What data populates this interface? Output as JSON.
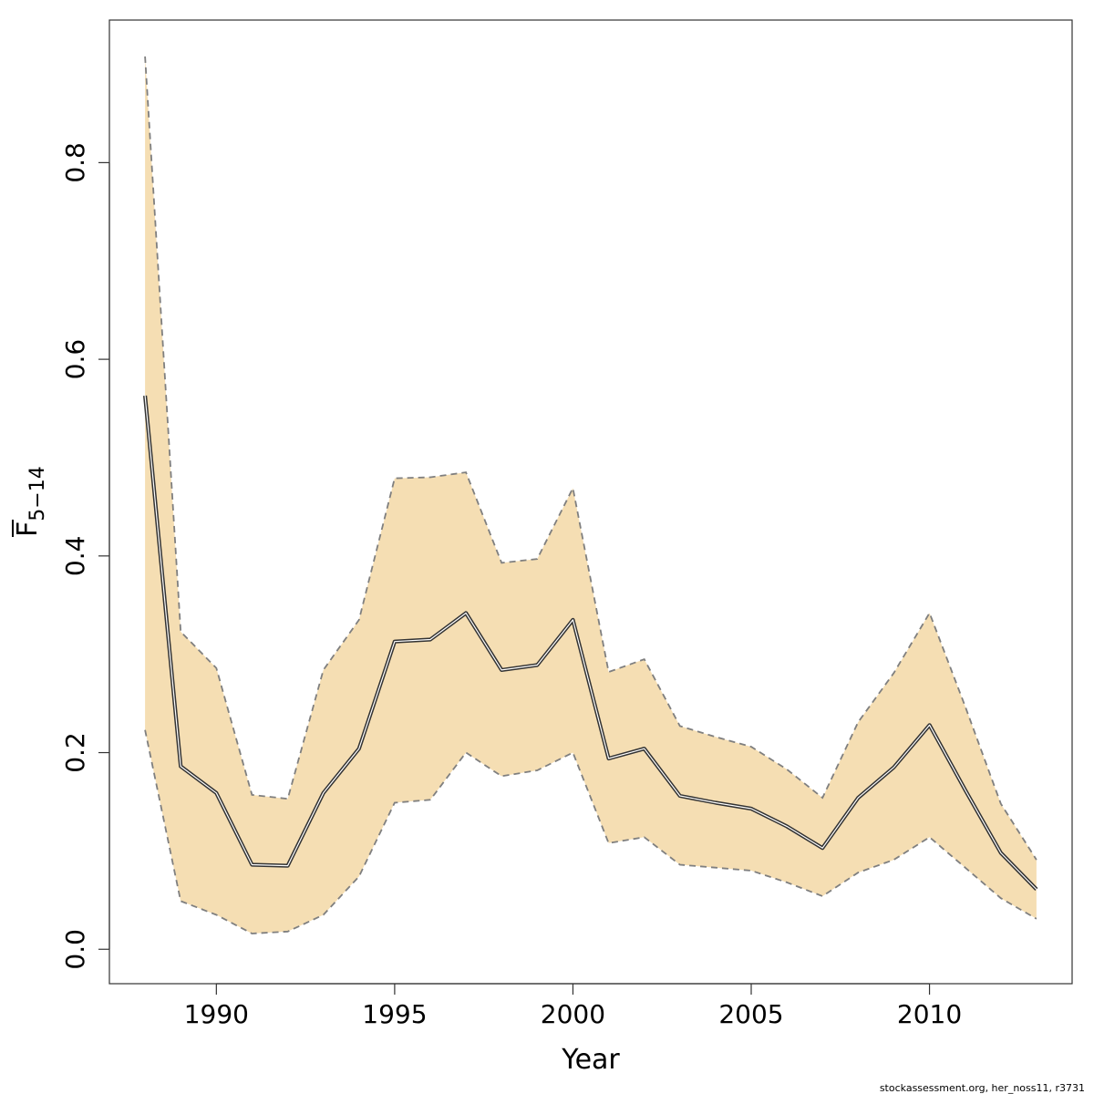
{
  "chart_data": {
    "type": "line",
    "xlabel": "Year",
    "ylabel": "F",
    "ylabel_subscript": "5−14",
    "xlim": [
      1987,
      2014
    ],
    "ylim": [
      -0.035,
      0.945
    ],
    "x_ticks": [
      1990,
      1995,
      2000,
      2005,
      2010
    ],
    "y_ticks": [
      0.0,
      0.2,
      0.4,
      0.6,
      0.8
    ],
    "y_tick_labels": [
      "0.0",
      "0.2",
      "0.4",
      "0.6",
      "0.8"
    ],
    "grid": false,
    "band_color": "#f5deb3",
    "band_line_color": "#7f7f7f",
    "line_color": "#333333",
    "x": [
      1988,
      1989,
      1990,
      1991,
      1992,
      1993,
      1994,
      1995,
      1996,
      1997,
      1998,
      1999,
      2000,
      2001,
      2002,
      2003,
      2004,
      2005,
      2006,
      2007,
      2008,
      2009,
      2010,
      2011,
      2012,
      2013
    ],
    "series": [
      {
        "values": [
          0.563,
          0.186,
          0.159,
          0.086,
          0.085,
          0.159,
          0.204,
          0.313,
          0.315,
          0.342,
          0.284,
          0.289,
          0.335,
          0.194,
          0.204,
          0.156,
          0.149,
          0.143,
          0.125,
          0.103,
          0.154,
          0.185,
          0.228,
          0.162,
          0.098,
          0.061
        ]
      },
      {
        "values": [
          0.908,
          0.323,
          0.286,
          0.157,
          0.153,
          0.284,
          0.335,
          0.479,
          0.48,
          0.485,
          0.393,
          0.397,
          0.469,
          0.282,
          0.295,
          0.227,
          0.216,
          0.206,
          0.183,
          0.154,
          0.231,
          0.281,
          0.342,
          0.247,
          0.148,
          0.091
        ]
      },
      {
        "values": [
          0.223,
          0.049,
          0.035,
          0.016,
          0.018,
          0.035,
          0.074,
          0.149,
          0.152,
          0.2,
          0.176,
          0.182,
          0.2,
          0.108,
          0.114,
          0.086,
          0.083,
          0.08,
          0.068,
          0.054,
          0.078,
          0.091,
          0.114,
          0.083,
          0.052,
          0.031
        ]
      }
    ]
  },
  "footer": "stockassessment.org, her_noss11, r3731"
}
